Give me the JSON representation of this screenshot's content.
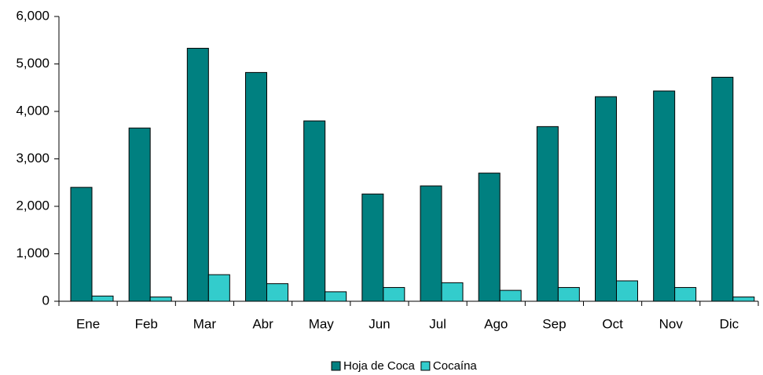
{
  "chart_data": {
    "type": "bar",
    "categories": [
      "Ene",
      "Feb",
      "Mar",
      "Abr",
      "May",
      "Jun",
      "Jul",
      "Ago",
      "Sep",
      "Oct",
      "Nov",
      "Dic"
    ],
    "series": [
      {
        "name": "Hoja de Coca",
        "color": "#008080",
        "values": [
          2400,
          3650,
          5330,
          4820,
          3800,
          2260,
          2430,
          2700,
          3680,
          4310,
          4430,
          4720
        ]
      },
      {
        "name": "Cocaína",
        "color": "#33cccc",
        "values": [
          110,
          90,
          560,
          370,
          200,
          290,
          390,
          230,
          290,
          430,
          290,
          90
        ]
      }
    ],
    "ylim": [
      0,
      6000
    ],
    "yticks": [
      0,
      {
        "value": 1000,
        "label": "1,000"
      },
      {
        "value": 2000,
        "label": "2,000"
      },
      {
        "value": 3000,
        "label": "3,000"
      },
      {
        "value": 4000,
        "label": "4,000"
      },
      {
        "value": 5000,
        "label": "5,000"
      },
      {
        "value": 6000,
        "label": "6,000"
      }
    ],
    "legend": "bottom"
  }
}
